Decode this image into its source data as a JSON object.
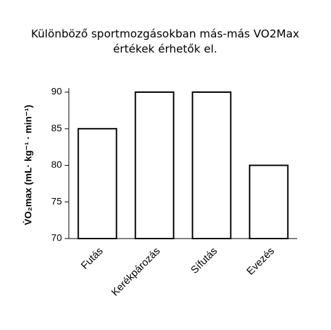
{
  "chart_data": {
    "type": "bar",
    "title": "Különböző sportmozgásokban más-más VO2Max",
    "subtitle": "értékek érhetők el.",
    "y_label": "V̇O₂max (mL· kg⁻¹ · min⁻¹)",
    "categories": [
      "Futás",
      "Kerékpározás",
      "Sífutás",
      "Evezés"
    ],
    "values": [
      85,
      90,
      90,
      80
    ],
    "color": "#ffffff",
    "ylim": [
      70,
      90
    ],
    "yticks": [
      70,
      75,
      80,
      85,
      90
    ]
  }
}
